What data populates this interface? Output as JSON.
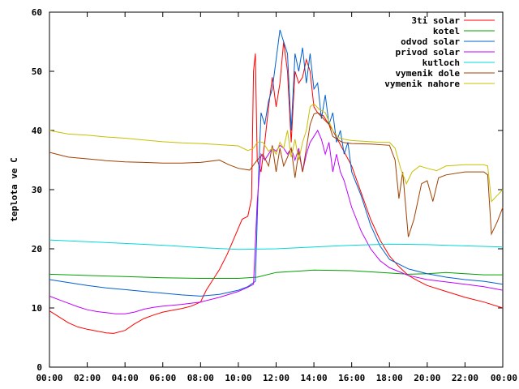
{
  "chart_data": {
    "type": "line",
    "title": "",
    "xlabel": "",
    "ylabel": "teplota ve C",
    "xlim": [
      0,
      24
    ],
    "ylim": [
      0,
      60
    ],
    "x_ticks": [
      "00:00",
      "02:00",
      "04:00",
      "06:00",
      "08:00",
      "10:00",
      "12:00",
      "14:00",
      "16:00",
      "18:00",
      "20:00",
      "22:00",
      "00:00"
    ],
    "y_ticks": [
      0,
      10,
      20,
      30,
      40,
      50,
      60
    ],
    "grid": false,
    "legend_position": "top-right",
    "series": [
      {
        "name": "3ti solar",
        "color": "#ff0000",
        "points": [
          [
            0,
            9.5
          ],
          [
            0.5,
            8.5
          ],
          [
            1,
            7.5
          ],
          [
            1.5,
            6.8
          ],
          [
            2,
            6.4
          ],
          [
            2.5,
            6.1
          ],
          [
            3,
            5.8
          ],
          [
            3.4,
            5.7
          ],
          [
            4,
            6.2
          ],
          [
            4.5,
            7.3
          ],
          [
            5,
            8.2
          ],
          [
            5.5,
            8.8
          ],
          [
            6,
            9.3
          ],
          [
            6.5,
            9.6
          ],
          [
            7,
            9.9
          ],
          [
            7.5,
            10.3
          ],
          [
            8,
            11.0
          ],
          [
            8.3,
            13.0
          ],
          [
            8.7,
            15.0
          ],
          [
            9,
            16.5
          ],
          [
            9.4,
            19.0
          ],
          [
            9.8,
            22.0
          ],
          [
            10.2,
            25.0
          ],
          [
            10.5,
            25.5
          ],
          [
            10.7,
            28.5
          ],
          [
            10.8,
            50.0
          ],
          [
            10.9,
            53.0
          ],
          [
            11.0,
            35.0
          ],
          [
            11.2,
            33.0
          ],
          [
            11.4,
            38.0
          ],
          [
            11.6,
            44.0
          ],
          [
            11.8,
            49.0
          ],
          [
            12.0,
            44.0
          ],
          [
            12.2,
            48.0
          ],
          [
            12.4,
            55.0
          ],
          [
            12.6,
            50.0
          ],
          [
            12.8,
            38.0
          ],
          [
            13.0,
            50.0
          ],
          [
            13.2,
            48.0
          ],
          [
            13.4,
            49.0
          ],
          [
            13.6,
            52.0
          ],
          [
            13.8,
            50.0
          ],
          [
            14.0,
            44.0
          ],
          [
            14.2,
            43.0
          ],
          [
            14.5,
            42.5
          ],
          [
            14.8,
            41.0
          ],
          [
            15.0,
            40.0
          ],
          [
            15.5,
            37.0
          ],
          [
            16.0,
            34.0
          ],
          [
            16.5,
            29.5
          ],
          [
            17.0,
            25.0
          ],
          [
            17.5,
            21.5
          ],
          [
            18.0,
            18.8
          ],
          [
            18.5,
            17.0
          ],
          [
            19.0,
            15.5
          ],
          [
            19.5,
            14.6
          ],
          [
            20.0,
            13.8
          ],
          [
            21.0,
            12.8
          ],
          [
            22.0,
            11.8
          ],
          [
            23.0,
            11.0
          ],
          [
            24.0,
            10.0
          ]
        ]
      },
      {
        "name": "kotel",
        "color": "#00a000",
        "points": [
          [
            0,
            15.7
          ],
          [
            2,
            15.5
          ],
          [
            4,
            15.3
          ],
          [
            6,
            15.1
          ],
          [
            8,
            15.0
          ],
          [
            10,
            15.0
          ],
          [
            11,
            15.2
          ],
          [
            12,
            16.0
          ],
          [
            13,
            16.2
          ],
          [
            14,
            16.4
          ],
          [
            16,
            16.3
          ],
          [
            18,
            15.9
          ],
          [
            19,
            15.7
          ],
          [
            20,
            15.8
          ],
          [
            21,
            16.0
          ],
          [
            22,
            15.8
          ],
          [
            23,
            15.6
          ],
          [
            24,
            15.6
          ]
        ]
      },
      {
        "name": "odvod solar",
        "color": "#0060d0",
        "points": [
          [
            0,
            14.8
          ],
          [
            1,
            14.3
          ],
          [
            2,
            13.8
          ],
          [
            3,
            13.4
          ],
          [
            4,
            13.1
          ],
          [
            5,
            12.8
          ],
          [
            6,
            12.5
          ],
          [
            7,
            12.2
          ],
          [
            8,
            12.0
          ],
          [
            9,
            12.3
          ],
          [
            10,
            13.0
          ],
          [
            10.5,
            13.6
          ],
          [
            10.9,
            14.5
          ],
          [
            11.0,
            25.0
          ],
          [
            11.1,
            35.0
          ],
          [
            11.2,
            43.0
          ],
          [
            11.4,
            41.0
          ],
          [
            11.6,
            45.0
          ],
          [
            11.8,
            47.0
          ],
          [
            12.0,
            52.0
          ],
          [
            12.2,
            57.0
          ],
          [
            12.4,
            55.0
          ],
          [
            12.6,
            53.0
          ],
          [
            12.8,
            40.0
          ],
          [
            13.0,
            53.0
          ],
          [
            13.2,
            50.0
          ],
          [
            13.4,
            54.0
          ],
          [
            13.6,
            48.0
          ],
          [
            13.8,
            53.0
          ],
          [
            14.0,
            47.0
          ],
          [
            14.2,
            48.0
          ],
          [
            14.4,
            42.0
          ],
          [
            14.6,
            46.0
          ],
          [
            14.8,
            41.0
          ],
          [
            15.0,
            43.0
          ],
          [
            15.2,
            38.0
          ],
          [
            15.4,
            40.0
          ],
          [
            15.6,
            36.0
          ],
          [
            15.8,
            38.0
          ],
          [
            16.0,
            33.0
          ],
          [
            16.5,
            29.0
          ],
          [
            17.0,
            24.0
          ],
          [
            17.5,
            20.5
          ],
          [
            18.0,
            18.2
          ],
          [
            19.0,
            16.6
          ],
          [
            20.0,
            15.8
          ],
          [
            21.0,
            15.2
          ],
          [
            22.0,
            14.8
          ],
          [
            23.0,
            14.5
          ],
          [
            24.0,
            14.0
          ]
        ]
      },
      {
        "name": "privod solar",
        "color": "#c000ff",
        "points": [
          [
            0,
            12.0
          ],
          [
            0.5,
            11.4
          ],
          [
            1,
            10.8
          ],
          [
            1.5,
            10.2
          ],
          [
            2,
            9.7
          ],
          [
            2.5,
            9.4
          ],
          [
            3,
            9.2
          ],
          [
            3.5,
            9.0
          ],
          [
            4,
            9.0
          ],
          [
            4.5,
            9.3
          ],
          [
            5,
            9.8
          ],
          [
            5.5,
            10.1
          ],
          [
            6,
            10.3
          ],
          [
            7,
            10.6
          ],
          [
            8,
            11.0
          ],
          [
            9,
            11.8
          ],
          [
            10,
            12.8
          ],
          [
            10.5,
            13.5
          ],
          [
            10.8,
            14.0
          ],
          [
            11.0,
            28.0
          ],
          [
            11.2,
            36.0
          ],
          [
            11.4,
            35.0
          ],
          [
            11.6,
            36.0
          ],
          [
            11.8,
            37.0
          ],
          [
            12.0,
            36.5
          ],
          [
            12.2,
            37.5
          ],
          [
            12.4,
            37.0
          ],
          [
            12.6,
            36.0
          ],
          [
            12.8,
            37.0
          ],
          [
            13.0,
            35.0
          ],
          [
            13.2,
            37.0
          ],
          [
            13.4,
            33.0
          ],
          [
            13.6,
            36.0
          ],
          [
            13.8,
            38.0
          ],
          [
            14.0,
            39.0
          ],
          [
            14.2,
            40.0
          ],
          [
            14.4,
            38.5
          ],
          [
            14.6,
            36.0
          ],
          [
            14.8,
            38.0
          ],
          [
            15.0,
            33.0
          ],
          [
            15.2,
            36.0
          ],
          [
            15.4,
            33.0
          ],
          [
            15.6,
            31.5
          ],
          [
            16.0,
            27.0
          ],
          [
            16.5,
            23.0
          ],
          [
            17.0,
            20.0
          ],
          [
            17.5,
            18.0
          ],
          [
            18.0,
            16.8
          ],
          [
            19.0,
            15.5
          ],
          [
            20.0,
            14.8
          ],
          [
            21.0,
            14.4
          ],
          [
            22.0,
            14.0
          ],
          [
            23.0,
            13.6
          ],
          [
            24.0,
            13.0
          ]
        ]
      },
      {
        "name": "kutloch",
        "color": "#00d8d8",
        "points": [
          [
            0,
            21.5
          ],
          [
            2,
            21.2
          ],
          [
            4,
            20.9
          ],
          [
            6,
            20.6
          ],
          [
            8,
            20.2
          ],
          [
            10,
            19.9
          ],
          [
            12,
            20.0
          ],
          [
            14,
            20.3
          ],
          [
            16,
            20.6
          ],
          [
            18,
            20.8
          ],
          [
            20,
            20.7
          ],
          [
            22,
            20.5
          ],
          [
            24,
            20.3
          ]
        ]
      },
      {
        "name": "vymenik dole",
        "color": "#a04000",
        "points": [
          [
            0,
            36.3
          ],
          [
            1,
            35.5
          ],
          [
            2,
            35.2
          ],
          [
            3,
            34.9
          ],
          [
            4,
            34.7
          ],
          [
            5,
            34.6
          ],
          [
            6,
            34.5
          ],
          [
            7,
            34.5
          ],
          [
            8,
            34.6
          ],
          [
            9,
            35.0
          ],
          [
            9.5,
            34.2
          ],
          [
            10,
            33.6
          ],
          [
            10.6,
            33.3
          ],
          [
            11.0,
            35.0
          ],
          [
            11.3,
            36.0
          ],
          [
            11.6,
            34.0
          ],
          [
            11.8,
            37.5
          ],
          [
            12.0,
            33.0
          ],
          [
            12.2,
            37.0
          ],
          [
            12.4,
            34.0
          ],
          [
            12.6,
            35.5
          ],
          [
            12.8,
            37.0
          ],
          [
            13.0,
            32.0
          ],
          [
            13.2,
            36.5
          ],
          [
            13.4,
            33.0
          ],
          [
            13.6,
            37.0
          ],
          [
            13.8,
            41.0
          ],
          [
            14.0,
            42.8
          ],
          [
            14.2,
            43.0
          ],
          [
            14.5,
            42.0
          ],
          [
            14.8,
            41.0
          ],
          [
            15.0,
            39.0
          ],
          [
            15.5,
            38.0
          ],
          [
            16.0,
            37.8
          ],
          [
            17.0,
            37.7
          ],
          [
            18.0,
            37.5
          ],
          [
            18.3,
            35.0
          ],
          [
            18.5,
            28.5
          ],
          [
            18.7,
            33.0
          ],
          [
            19.0,
            22.0
          ],
          [
            19.3,
            25.0
          ],
          [
            19.7,
            31.0
          ],
          [
            20.0,
            31.5
          ],
          [
            20.3,
            28.0
          ],
          [
            20.6,
            32.0
          ],
          [
            21.0,
            32.5
          ],
          [
            22.0,
            33.0
          ],
          [
            23.0,
            33.0
          ],
          [
            23.2,
            32.5
          ],
          [
            23.4,
            22.5
          ],
          [
            23.7,
            24.5
          ],
          [
            24.0,
            27.0
          ]
        ]
      },
      {
        "name": "vymenik nahore",
        "color": "#c8c000",
        "points": [
          [
            0,
            40.0
          ],
          [
            1,
            39.4
          ],
          [
            2,
            39.2
          ],
          [
            3,
            38.9
          ],
          [
            4,
            38.7
          ],
          [
            5,
            38.4
          ],
          [
            6,
            38.1
          ],
          [
            7,
            37.9
          ],
          [
            8,
            37.8
          ],
          [
            9,
            37.6
          ],
          [
            10,
            37.4
          ],
          [
            10.5,
            36.6
          ],
          [
            10.8,
            37.0
          ],
          [
            11.0,
            38.0
          ],
          [
            11.3,
            38.0
          ],
          [
            11.6,
            36.5
          ],
          [
            11.8,
            37.0
          ],
          [
            12.0,
            36.0
          ],
          [
            12.2,
            38.0
          ],
          [
            12.4,
            37.0
          ],
          [
            12.6,
            40.0
          ],
          [
            12.8,
            35.5
          ],
          [
            13.0,
            38.5
          ],
          [
            13.2,
            35.0
          ],
          [
            13.4,
            38.0
          ],
          [
            13.6,
            40.0
          ],
          [
            13.8,
            44.0
          ],
          [
            14.0,
            44.5
          ],
          [
            14.3,
            43.5
          ],
          [
            14.6,
            43.0
          ],
          [
            15.0,
            40.0
          ],
          [
            15.3,
            38.8
          ],
          [
            15.6,
            38.5
          ],
          [
            16.0,
            38.3
          ],
          [
            16.5,
            38.2
          ],
          [
            17.0,
            38.1
          ],
          [
            17.5,
            38.0
          ],
          [
            18.0,
            38.0
          ],
          [
            18.3,
            37.0
          ],
          [
            18.6,
            33.5
          ],
          [
            18.9,
            31.0
          ],
          [
            19.2,
            33.0
          ],
          [
            19.6,
            34.0
          ],
          [
            20.0,
            33.6
          ],
          [
            20.5,
            33.2
          ],
          [
            21.0,
            34.0
          ],
          [
            22.0,
            34.2
          ],
          [
            23.0,
            34.2
          ],
          [
            23.2,
            34.0
          ],
          [
            23.4,
            28.0
          ],
          [
            23.7,
            29.0
          ],
          [
            24.0,
            30.0
          ]
        ]
      }
    ]
  }
}
